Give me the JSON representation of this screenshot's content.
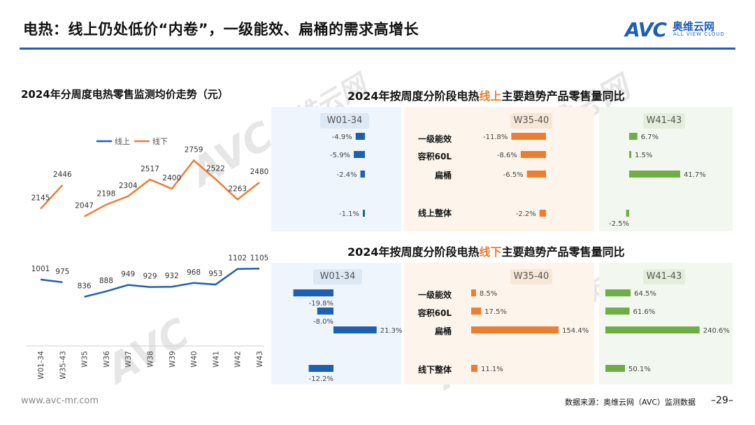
{
  "title": "电热：线上仍处低价“内卷”，一级能效、扁桶的需求高增长",
  "logo": {
    "mark": "AVC",
    "cn": "奥维云网",
    "en": "ALL VIEW CLOUD"
  },
  "watermark": {
    "cn": "奥维云网",
    "en": "ALL VIEW CLOUD",
    "mark": "AVC"
  },
  "footer": {
    "url": "www.avc-mr.com",
    "source": "数据来源：奥维云网（AVC）监测数据",
    "page": "–29–"
  },
  "colors": {
    "online": "#1f5fb0",
    "offline": "#ed7d31",
    "green": "#70ad47",
    "brand": "#1e5fb4"
  },
  "left_chart": {
    "title": "2024年分周度电热零售监测均价走势（元）",
    "legend_online": "线上",
    "legend_offline": "线下"
  },
  "right_top": {
    "title_pre": "2024年按周度分阶段电热",
    "title_hl": "线上",
    "title_post": "主要趋势产品零售量同比",
    "cats": [
      "一级能效",
      "容积60L",
      "扁桶",
      "线上整体"
    ]
  },
  "right_bottom": {
    "title_pre": "2024年按周度分阶段电热",
    "title_hl": "线下",
    "title_post": "主要趋势产品零售量同比",
    "cats": [
      "一级能效",
      "容积60L",
      "扁桶",
      "线下整体"
    ]
  },
  "chart_data": [
    {
      "type": "line",
      "title": "2024年分周度电热零售监测均价走势（元）",
      "categories": [
        "W01-34",
        "W35-43",
        "W35",
        "W36",
        "W37",
        "W38",
        "W39",
        "W40",
        "W41",
        "W42",
        "W43"
      ],
      "series": [
        {
          "name": "线下",
          "segments": [
            [
              0,
              1
            ],
            [
              2,
              10
            ]
          ],
          "values": [
            2145,
            2446,
            2047,
            2198,
            2304,
            2517,
            2400,
            2759,
            2522,
            2263,
            2480
          ]
        },
        {
          "name": "线上",
          "segments": [
            [
              0,
              1
            ],
            [
              2,
              10
            ]
          ],
          "values": [
            1001,
            975,
            836,
            888,
            949,
            929,
            932,
            968,
            953,
            1102,
            1105
          ]
        }
      ]
    },
    {
      "type": "bar",
      "title": "2024年按周度分阶段电热线上主要趋势产品零售量同比",
      "categories": [
        "一级能效",
        "容积60L",
        "扁桶",
        "线上整体"
      ],
      "panels": [
        {
          "name": "W01-34",
          "values": [
            -4.9,
            -5.9,
            -2.4,
            -1.1
          ],
          "labels": [
            "-4.9%",
            "-5.9%",
            "-2.4%",
            "-1.1%"
          ]
        },
        {
          "name": "W35-40",
          "values": [
            -11.8,
            -8.6,
            -6.5,
            -2.2
          ],
          "labels": [
            "-11.8%",
            "-8.6%",
            "-6.5%",
            "-2.2%"
          ]
        },
        {
          "name": "W41-43",
          "values": [
            6.7,
            1.5,
            41.7,
            -2.5
          ],
          "labels": [
            "6.7%",
            "1.5%",
            "41.7%",
            "-2.5%"
          ]
        }
      ]
    },
    {
      "type": "bar",
      "title": "2024年按周度分阶段电热线下主要趋势产品零售量同比",
      "categories": [
        "一级能效",
        "容积60L",
        "扁桶",
        "线下整体"
      ],
      "panels": [
        {
          "name": "W01-34",
          "values": [
            -19.8,
            -8.0,
            21.3,
            -12.2
          ],
          "labels": [
            "-19.8%",
            "-8.0%",
            "21.3%",
            "-12.2%"
          ]
        },
        {
          "name": "W35-40",
          "values": [
            8.5,
            17.5,
            154.4,
            11.1
          ],
          "labels": [
            "8.5%",
            "17.5%",
            "154.4%",
            "11.1%"
          ]
        },
        {
          "name": "W41-43",
          "values": [
            64.5,
            61.6,
            240.6,
            50.1
          ],
          "labels": [
            "64.5%",
            "61.6%",
            "240.6%",
            "50.1%"
          ]
        }
      ]
    }
  ]
}
